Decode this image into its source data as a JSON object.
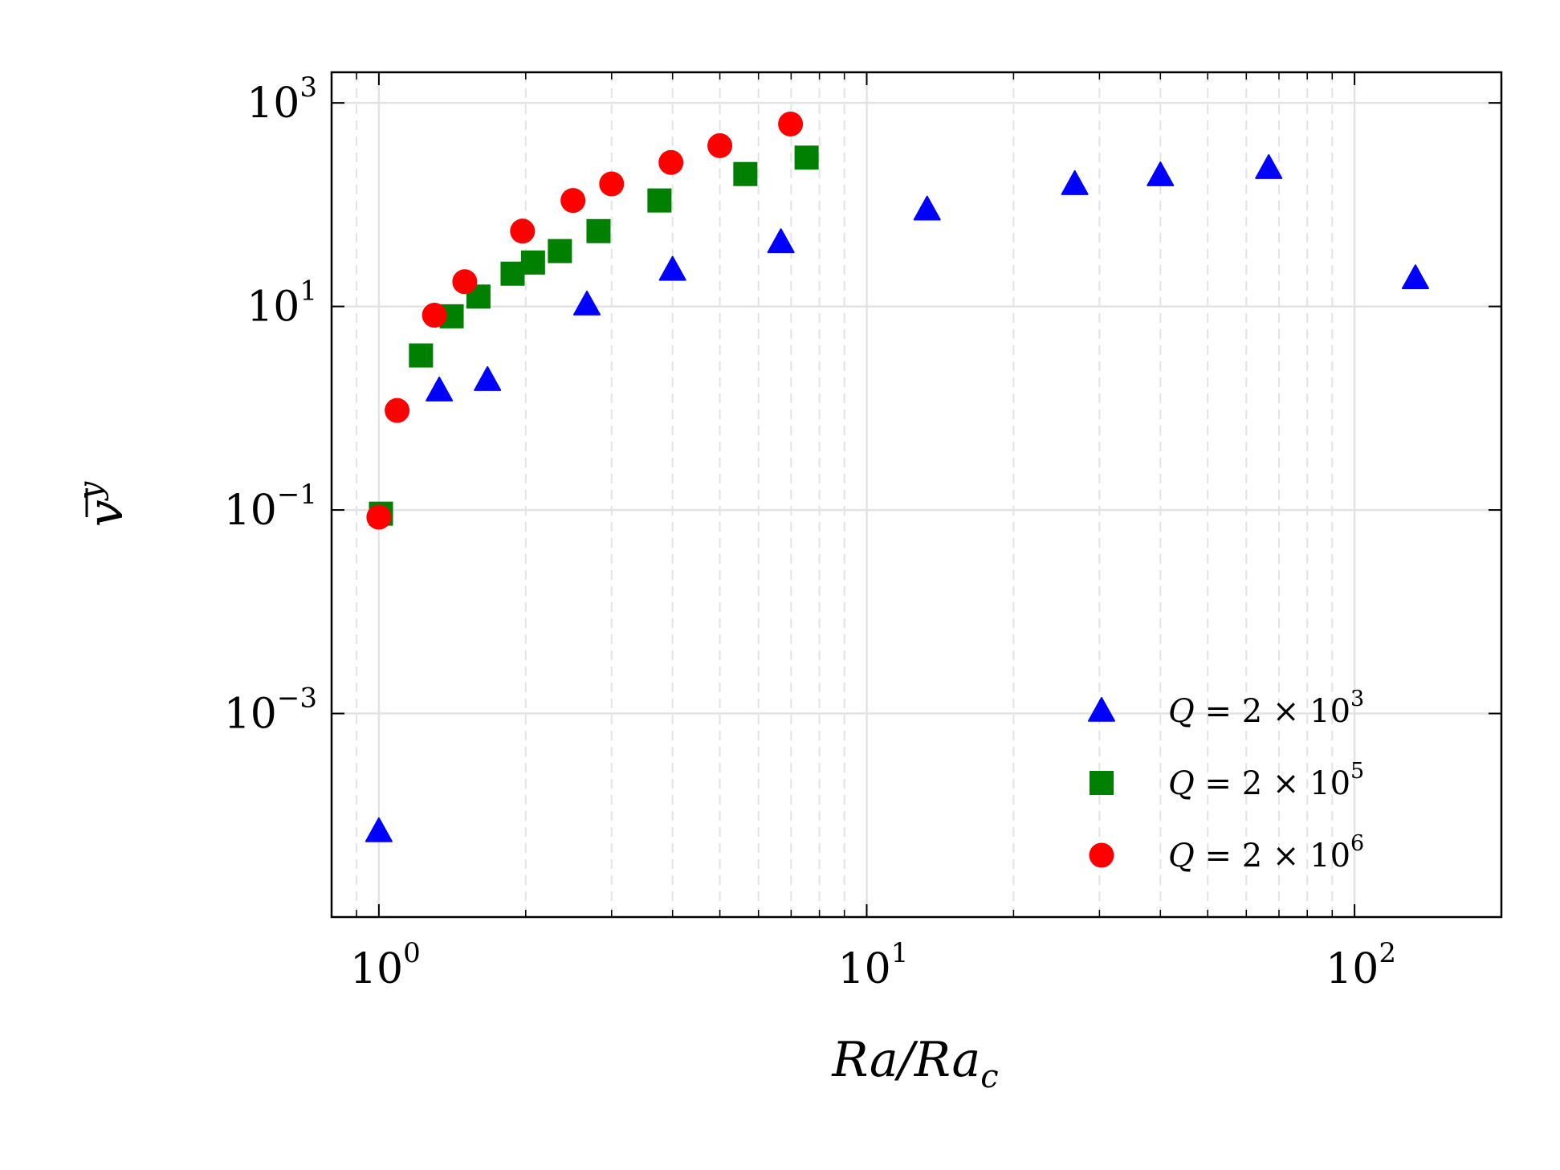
{
  "chart_data": {
    "type": "scatter",
    "title": "",
    "xlabel": "Ra/Ra_c",
    "xlabel_parts": {
      "main": "Ra/Ra",
      "sub": "c"
    },
    "ylabel": "v̄^y",
    "ylabel_parts": {
      "main": "v",
      "sup": "y"
    },
    "xscale": "log",
    "yscale": "log",
    "xlim": [
      0.8,
      200
    ],
    "ylim": [
      1e-05,
      2000
    ],
    "grid": true,
    "legend_position": "lower-right",
    "x_ticks": [
      {
        "value": 1,
        "base": "10",
        "exp": "0"
      },
      {
        "value": 10,
        "base": "10",
        "exp": "1"
      },
      {
        "value": 100,
        "base": "10",
        "exp": "2"
      }
    ],
    "y_ticks": [
      {
        "value": 1000,
        "base": "10",
        "exp": "3"
      },
      {
        "value": 10,
        "base": "10",
        "exp": "1"
      },
      {
        "value": 0.1,
        "base": "10",
        "exp": "−1"
      },
      {
        "value": 0.001,
        "base": "10",
        "exp": "−3"
      }
    ],
    "series": [
      {
        "name": "Q = 2 × 10^3",
        "label_main": "Q = 2 × 10",
        "label_exp": "3",
        "marker": "triangle",
        "color": "#0000ff",
        "x": [
          1.0,
          1.33,
          1.67,
          2.67,
          4.0,
          6.67,
          13.3,
          26.7,
          40.0,
          66.7,
          133.3
        ],
        "y": [
          7e-05,
          1.5,
          1.9,
          10.5,
          23.0,
          43.0,
          90.0,
          160.0,
          195.0,
          230.0,
          19.0
        ]
      },
      {
        "name": "Q = 2 × 10^5",
        "label_main": "Q = 2 × 10",
        "label_exp": "5",
        "marker": "square",
        "color": "#008000",
        "x": [
          1.01,
          1.22,
          1.41,
          1.6,
          1.88,
          2.07,
          2.35,
          2.82,
          3.76,
          5.64,
          7.53
        ],
        "y": [
          0.092,
          3.3,
          8.0,
          12.5,
          21.0,
          27.0,
          35.0,
          55.0,
          110.0,
          200.0,
          290.0
        ]
      },
      {
        "name": "Q = 2 × 10^6",
        "label_main": "Q = 2 × 10",
        "label_exp": "6",
        "marker": "circle",
        "color": "#ff0000",
        "x": [
          1.0,
          1.09,
          1.3,
          1.5,
          1.97,
          2.5,
          3.0,
          3.97,
          5.0,
          6.98
        ],
        "y": [
          0.085,
          0.95,
          8.2,
          17.5,
          55.0,
          110.0,
          160.0,
          260.0,
          380.0,
          620.0
        ]
      }
    ]
  }
}
